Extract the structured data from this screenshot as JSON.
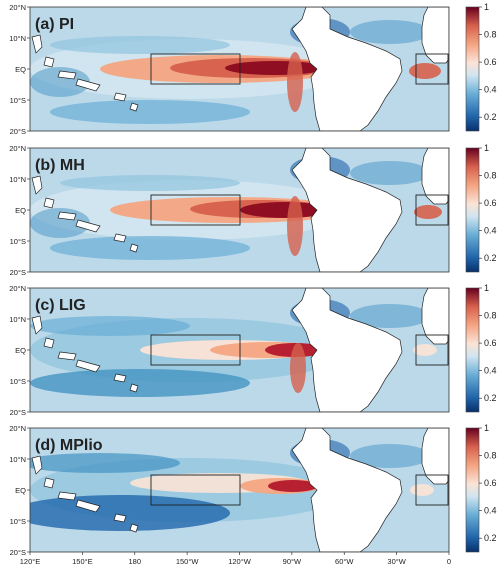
{
  "chart_data": {
    "type": "heatmap",
    "panels": [
      {
        "label": "(a) PI"
      },
      {
        "label": "(b) MH"
      },
      {
        "label": "(c) LIG"
      },
      {
        "label": "(d) MPlio"
      }
    ],
    "lat_ticks": [
      "20°N",
      "10°N",
      "EQ",
      "10°S",
      "20°S"
    ],
    "lon_ticks": [
      "120°E",
      "150°E",
      "180",
      "150°W",
      "120°W",
      "90°W",
      "60°W",
      "30°W",
      "0"
    ],
    "colorbar": {
      "ticks": [
        "0.2",
        "0.4",
        "0.6",
        "0.8",
        "1"
      ],
      "range": [
        0.1,
        1.0
      ]
    },
    "colors": {
      "land": "#ffffff",
      "low": "#2166ac",
      "mid": "#f7f7f7",
      "high": "#8b0a1f"
    }
  }
}
